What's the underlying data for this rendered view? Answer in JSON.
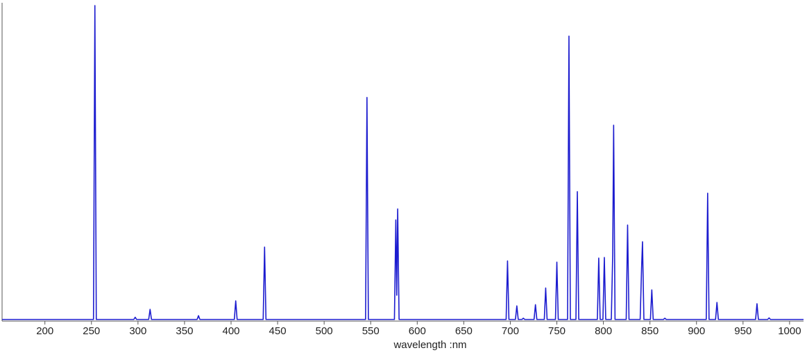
{
  "chart_data": {
    "type": "line",
    "x_label": "wavelength :nm",
    "x": [
      154,
      252.2,
      253.7,
      255.2,
      295.5,
      297,
      298.5,
      311.5,
      313,
      314.5,
      363.5,
      365,
      366.5,
      403.5,
      405,
      406.5,
      434.5,
      436,
      437.5,
      544.5,
      546,
      547.5,
      575.5,
      577,
      578,
      579,
      580.5,
      695.5,
      697,
      698.5,
      705.5,
      707,
      708.5,
      712.5,
      714,
      715.5,
      725.5,
      727,
      728.5,
      736.5,
      738,
      739.5,
      748.5,
      750,
      751.5,
      761.5,
      763,
      764.5,
      770.5,
      772,
      773.5,
      793.5,
      795,
      796.5,
      799.5,
      801,
      802.5,
      808.5,
      810,
      811,
      812.5,
      824.5,
      826,
      827.5,
      839.5,
      841,
      842,
      843.5,
      850.5,
      852,
      853.5,
      864.5,
      866,
      867.5,
      910.5,
      912,
      913.5,
      920.5,
      922,
      923.5,
      963.5,
      965,
      966.5,
      976.5,
      978,
      979.5,
      1015
    ],
    "values": [
      0.3,
      0.3,
      100,
      0.3,
      0.3,
      1,
      0.3,
      0.3,
      3.5,
      0.3,
      0.3,
      1.5,
      0.3,
      0.3,
      6.2,
      0.3,
      0.3,
      23.3,
      0.3,
      0.3,
      70.8,
      0.3,
      0.3,
      31.9,
      8,
      35.4,
      0.3,
      0.3,
      18.9,
      0.3,
      0.3,
      4.6,
      0.3,
      0.3,
      0.7,
      0.3,
      0.3,
      5,
      0.3,
      0.3,
      10.3,
      0.3,
      0.3,
      18.5,
      0.3,
      0.3,
      90.3,
      0.3,
      0.3,
      40.9,
      0.3,
      0.3,
      19.8,
      0.3,
      0.3,
      20,
      0.3,
      0.3,
      20.9,
      62,
      0.3,
      0.3,
      30.3,
      0.3,
      0.3,
      16.5,
      25,
      0.3,
      0.3,
      9.7,
      0.3,
      0.3,
      0.7,
      0.3,
      0.3,
      40.4,
      0.3,
      0.3,
      5.7,
      0.3,
      0.3,
      5.3,
      0.3,
      0.3,
      0.8,
      0.3,
      0.3
    ],
    "color": "#1c1ccf",
    "xlim": [
      154,
      1015
    ],
    "ylim": [
      0,
      100
    ],
    "xticks": [
      200,
      250,
      300,
      350,
      400,
      450,
      500,
      550,
      600,
      650,
      700,
      750,
      800,
      850,
      900,
      950,
      1000
    ]
  }
}
